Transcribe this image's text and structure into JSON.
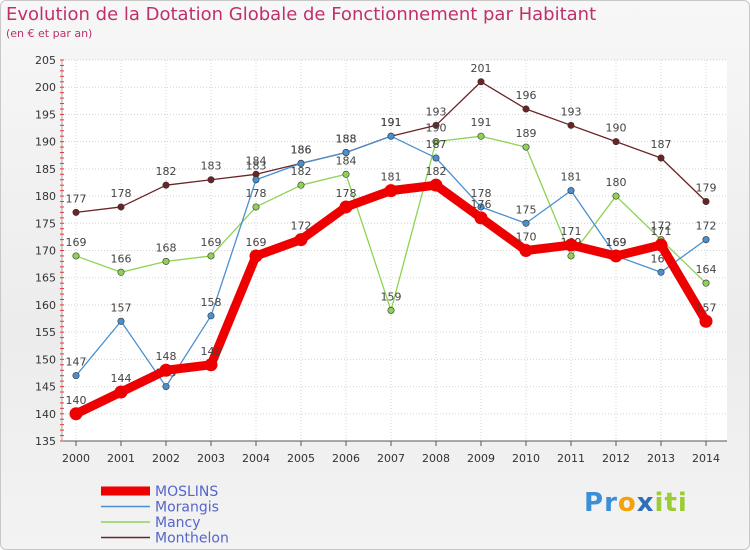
{
  "chart_data": {
    "type": "line",
    "title": "Evolution de la Dotation Globale de Fonctionnement par Habitant",
    "subtitle": "(en € et par an)",
    "xlabel": "",
    "ylabel": "",
    "x": [
      "2000",
      "2001",
      "2002",
      "2003",
      "2004",
      "2005",
      "2006",
      "2007",
      "2008",
      "2009",
      "2010",
      "2011",
      "2012",
      "2013",
      "2014"
    ],
    "ylim": [
      135,
      205
    ],
    "yticks": [
      135,
      140,
      145,
      150,
      155,
      160,
      165,
      170,
      175,
      180,
      185,
      190,
      195,
      200,
      205
    ],
    "grid": true,
    "legend_position": "bottom-left",
    "series": [
      {
        "name": "Monthelon",
        "color": "#6b2426",
        "values": [
          177,
          178,
          182,
          183,
          184,
          186,
          188,
          191,
          193,
          201,
          196,
          193,
          190,
          187,
          179
        ]
      },
      {
        "name": "Mancy",
        "color": "#8ed254",
        "values": [
          169,
          166,
          168,
          169,
          178,
          182,
          184,
          159,
          190,
          191,
          189,
          169,
          180,
          172,
          164
        ]
      },
      {
        "name": "Morangis",
        "color": "#4a90d0",
        "values": [
          147,
          157,
          145,
          158,
          183,
          186,
          188,
          191,
          187,
          178,
          175,
          181,
          169,
          166,
          172
        ]
      },
      {
        "name": "MOSLINS",
        "color": "#ee0000",
        "values": [
          140,
          144,
          148,
          149,
          169,
          172,
          178,
          181,
          182,
          176,
          170,
          171,
          169,
          171,
          157
        ]
      }
    ]
  },
  "brand": {
    "text": "Proxiti",
    "letters": [
      "P",
      "r",
      "o",
      "x",
      "i",
      "t",
      "i"
    ],
    "colors": [
      "#3b8fd6",
      "#3b8fd6",
      "#f4a20a",
      "#2f6fb7",
      "#9acd32",
      "#9acd32",
      "#9acd32"
    ]
  }
}
